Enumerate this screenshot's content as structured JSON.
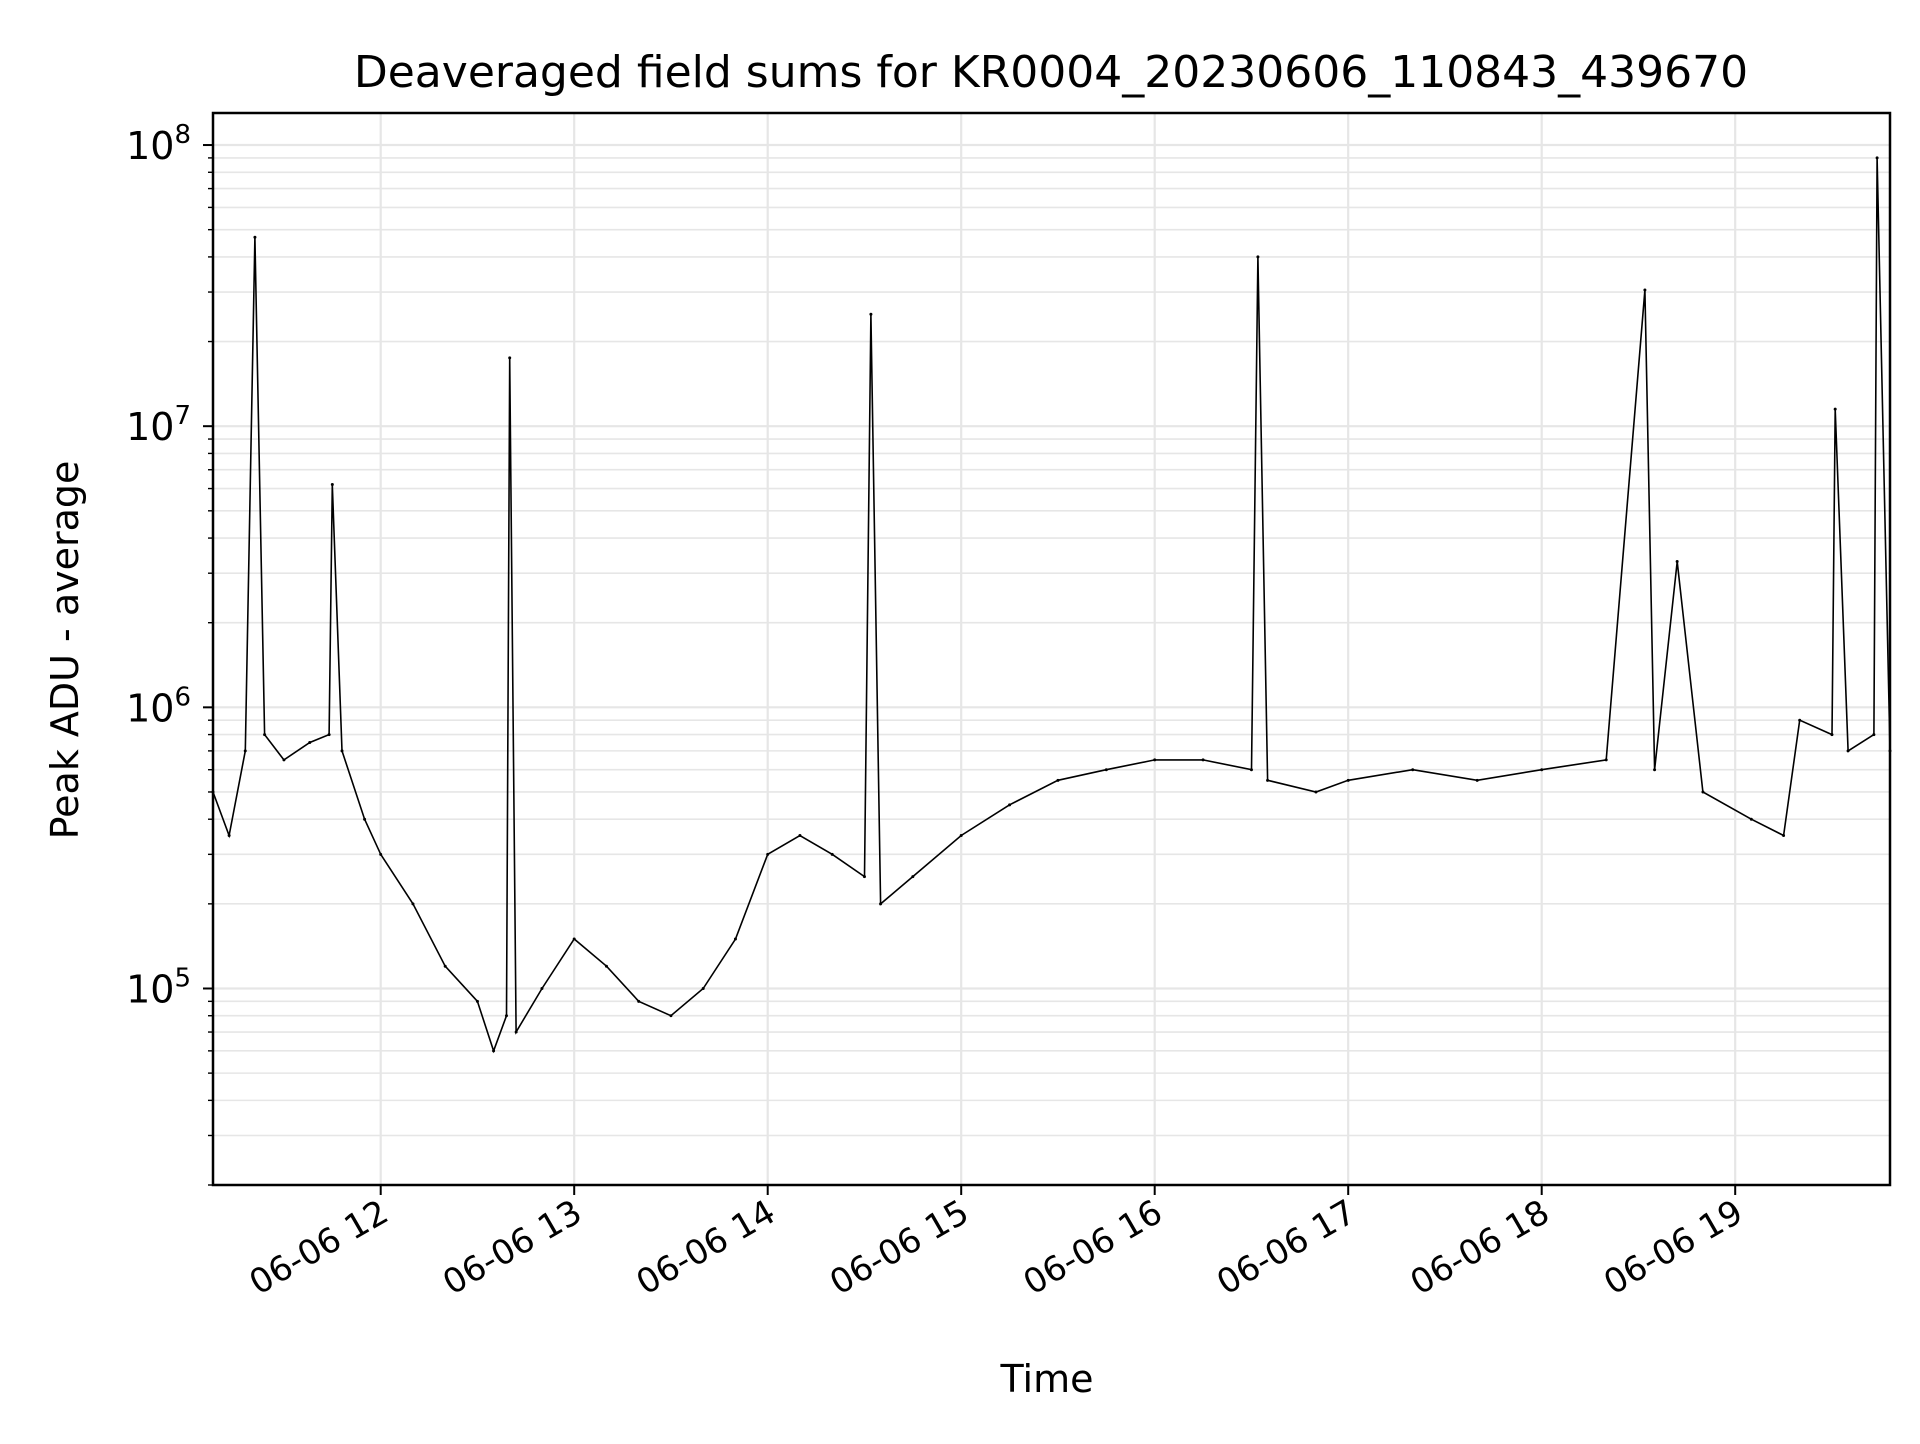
{
  "chart_data": {
    "type": "line",
    "title": "Deaveraged field sums for KR0004_20230606_110843_439670",
    "xlabel": "Time",
    "ylabel": "Peak ADU - average",
    "y_scale": "log",
    "x_range": [
      "2023-06-06 11:08",
      "2023-06-06 19:48"
    ],
    "ylim": [
      20000,
      130000000
    ],
    "grid": true,
    "legend": "none",
    "x_ticks": [
      "06-06 12",
      "06-06 13",
      "06-06 14",
      "06-06 15",
      "06-06 16",
      "06-06 17",
      "06-06 18",
      "06-06 19"
    ],
    "x_tick_times": [
      "2023-06-06 12:00",
      "2023-06-06 13:00",
      "2023-06-06 14:00",
      "2023-06-06 15:00",
      "2023-06-06 16:00",
      "2023-06-06 17:00",
      "2023-06-06 18:00",
      "2023-06-06 19:00"
    ],
    "y_ticks": [
      {
        "value": 100000,
        "base": "10",
        "exp": "5"
      },
      {
        "value": 1000000,
        "base": "10",
        "exp": "6"
      },
      {
        "value": 10000000,
        "base": "10",
        "exp": "7"
      },
      {
        "value": 100000000,
        "base": "10",
        "exp": "8"
      }
    ],
    "series": [
      {
        "color": "#000000",
        "points": [
          [
            "2023-06-06 11:08",
            500000
          ],
          [
            "2023-06-06 11:13",
            350000
          ],
          [
            "2023-06-06 11:18",
            700000
          ],
          [
            "2023-06-06 11:21",
            47000000
          ],
          [
            "2023-06-06 11:24",
            800000
          ],
          [
            "2023-06-06 11:30",
            650000
          ],
          [
            "2023-06-06 11:38",
            750000
          ],
          [
            "2023-06-06 11:44",
            800000
          ],
          [
            "2023-06-06 11:45",
            6200000
          ],
          [
            "2023-06-06 11:48",
            700000
          ],
          [
            "2023-06-06 11:55",
            400000
          ],
          [
            "2023-06-06 12:00",
            300000
          ],
          [
            "2023-06-06 12:10",
            200000
          ],
          [
            "2023-06-06 12:20",
            120000
          ],
          [
            "2023-06-06 12:30",
            90000
          ],
          [
            "2023-06-06 12:35",
            60000
          ],
          [
            "2023-06-06 12:39",
            80000
          ],
          [
            "2023-06-06 12:40",
            17500000
          ],
          [
            "2023-06-06 12:42",
            70000
          ],
          [
            "2023-06-06 12:50",
            100000
          ],
          [
            "2023-06-06 13:00",
            150000
          ],
          [
            "2023-06-06 13:10",
            120000
          ],
          [
            "2023-06-06 13:20",
            90000
          ],
          [
            "2023-06-06 13:30",
            80000
          ],
          [
            "2023-06-06 13:40",
            100000
          ],
          [
            "2023-06-06 13:50",
            150000
          ],
          [
            "2023-06-06 14:00",
            300000
          ],
          [
            "2023-06-06 14:10",
            350000
          ],
          [
            "2023-06-06 14:20",
            300000
          ],
          [
            "2023-06-06 14:30",
            250000
          ],
          [
            "2023-06-06 14:32",
            25000000
          ],
          [
            "2023-06-06 14:35",
            200000
          ],
          [
            "2023-06-06 14:45",
            250000
          ],
          [
            "2023-06-06 15:00",
            350000
          ],
          [
            "2023-06-06 15:15",
            450000
          ],
          [
            "2023-06-06 15:30",
            550000
          ],
          [
            "2023-06-06 15:45",
            600000
          ],
          [
            "2023-06-06 16:00",
            650000
          ],
          [
            "2023-06-06 16:15",
            650000
          ],
          [
            "2023-06-06 16:30",
            600000
          ],
          [
            "2023-06-06 16:32",
            40000000
          ],
          [
            "2023-06-06 16:35",
            550000
          ],
          [
            "2023-06-06 16:50",
            500000
          ],
          [
            "2023-06-06 17:00",
            550000
          ],
          [
            "2023-06-06 17:20",
            600000
          ],
          [
            "2023-06-06 17:40",
            550000
          ],
          [
            "2023-06-06 18:00",
            600000
          ],
          [
            "2023-06-06 18:20",
            650000
          ],
          [
            "2023-06-06 18:32",
            30500000
          ],
          [
            "2023-06-06 18:35",
            600000
          ],
          [
            "2023-06-06 18:42",
            3300000
          ],
          [
            "2023-06-06 18:50",
            500000
          ],
          [
            "2023-06-06 19:05",
            400000
          ],
          [
            "2023-06-06 19:15",
            350000
          ],
          [
            "2023-06-06 19:20",
            900000
          ],
          [
            "2023-06-06 19:30",
            800000
          ],
          [
            "2023-06-06 19:31",
            11500000
          ],
          [
            "2023-06-06 19:35",
            700000
          ],
          [
            "2023-06-06 19:43",
            800000
          ],
          [
            "2023-06-06 19:44",
            90000000
          ],
          [
            "2023-06-06 19:48",
            700000
          ]
        ]
      }
    ]
  }
}
